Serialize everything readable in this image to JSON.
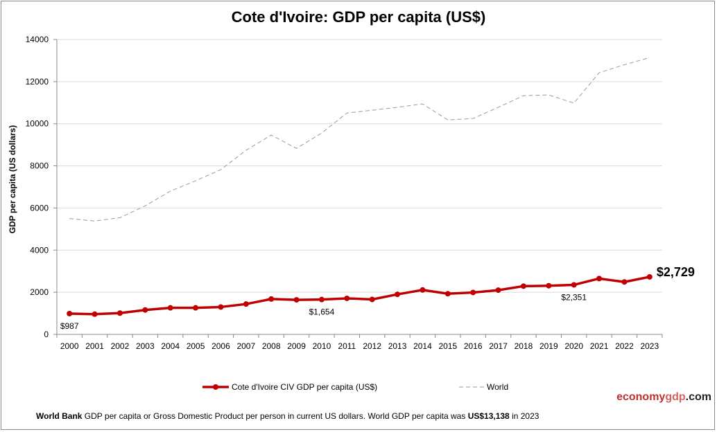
{
  "chart_data": {
    "type": "line",
    "title": "Cote d'Ivoire: GDP per capita (US$)",
    "xlabel": "",
    "ylabel": "GDP per capita (US dollars)",
    "ylim": [
      0,
      14000
    ],
    "yticks": [
      0,
      2000,
      4000,
      6000,
      8000,
      10000,
      12000,
      14000
    ],
    "grid": true,
    "legend_placement": "bottom",
    "categories": [
      "2000",
      "2001",
      "2002",
      "2003",
      "2004",
      "2005",
      "2006",
      "2007",
      "2008",
      "2009",
      "2010",
      "2011",
      "2012",
      "2013",
      "2014",
      "2015",
      "2016",
      "2017",
      "2018",
      "2019",
      "2020",
      "2021",
      "2022",
      "2023"
    ],
    "series": [
      {
        "name": "Cote d'Ivoire CIV GDP per capita (US$)",
        "color": "#c00000",
        "style": "solid-markers",
        "values": [
          987,
          960,
          1010,
          1160,
          1260,
          1260,
          1300,
          1440,
          1680,
          1640,
          1654,
          1710,
          1660,
          1900,
          2110,
          1930,
          1990,
          2100,
          2290,
          2310,
          2351,
          2650,
          2490,
          2729
        ]
      },
      {
        "name": "World",
        "color": "#999999",
        "style": "dashed",
        "values": [
          5500,
          5380,
          5540,
          6100,
          6800,
          7290,
          7820,
          8740,
          9460,
          8830,
          9560,
          10510,
          10640,
          10780,
          10940,
          10180,
          10250,
          10780,
          11330,
          11370,
          10980,
          12420,
          12800,
          13138
        ]
      }
    ],
    "annotations": [
      {
        "category": "2000",
        "text": "$987"
      },
      {
        "category": "2010",
        "text": "$1,654"
      },
      {
        "category": "2020",
        "text": "$2,351"
      },
      {
        "category": "2023",
        "text": "$2,729",
        "bold": true
      }
    ]
  },
  "brand": {
    "part1": "economy",
    "part2": "gdp",
    "part3": ".com"
  },
  "footer": {
    "bold1": "World Bank",
    "text1": " GDP per capita or Gross Domestic Product per person  in current US dollars.   World GDP per capita was ",
    "bold2": "US$13,138",
    "text2": "  in 2023"
  }
}
